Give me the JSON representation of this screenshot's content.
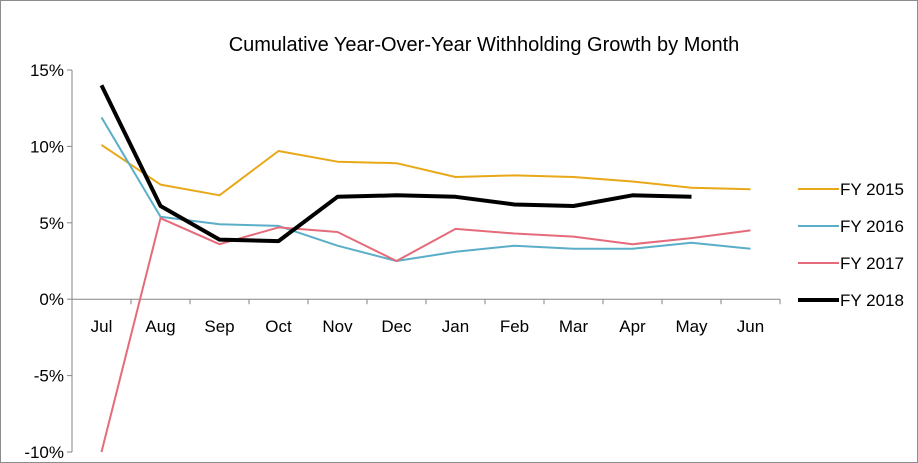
{
  "chart_data": {
    "type": "line",
    "title": "Cumulative Year-Over-Year Withholding Growth by Month",
    "xlabel": "",
    "ylabel": "",
    "categories": [
      "Jul",
      "Aug",
      "Sep",
      "Oct",
      "Nov",
      "Dec",
      "Jan",
      "Feb",
      "Mar",
      "Apr",
      "May",
      "Jun"
    ],
    "ylim": [
      -10,
      15
    ],
    "y_ticks": [
      15,
      10,
      5,
      0,
      -5,
      -10
    ],
    "y_tick_labels": [
      "15%",
      "10%",
      "5%",
      "0%",
      "-5%",
      "-10%"
    ],
    "grid": false,
    "legend_position": "right",
    "series": [
      {
        "name": "FY 2015",
        "color": "#e8a818",
        "width": 2,
        "values": [
          10.1,
          7.5,
          6.8,
          9.7,
          9.0,
          8.9,
          8.0,
          8.1,
          8.0,
          7.7,
          7.3,
          7.2
        ]
      },
      {
        "name": "FY 2016",
        "color": "#5aaec8",
        "width": 2,
        "values": [
          11.9,
          5.4,
          4.9,
          4.8,
          3.5,
          2.5,
          3.1,
          3.5,
          3.3,
          3.3,
          3.7,
          3.3
        ]
      },
      {
        "name": "FY 2017",
        "color": "#e56b7a",
        "width": 2,
        "values": [
          -10.0,
          5.3,
          3.6,
          4.7,
          4.4,
          2.5,
          4.6,
          4.3,
          4.1,
          3.6,
          4.0,
          4.5
        ]
      },
      {
        "name": "FY 2018",
        "color": "#000000",
        "width": 4,
        "values": [
          14.0,
          6.1,
          3.9,
          3.8,
          6.7,
          6.8,
          6.7,
          6.2,
          6.1,
          6.8,
          6.7,
          null
        ]
      }
    ]
  }
}
